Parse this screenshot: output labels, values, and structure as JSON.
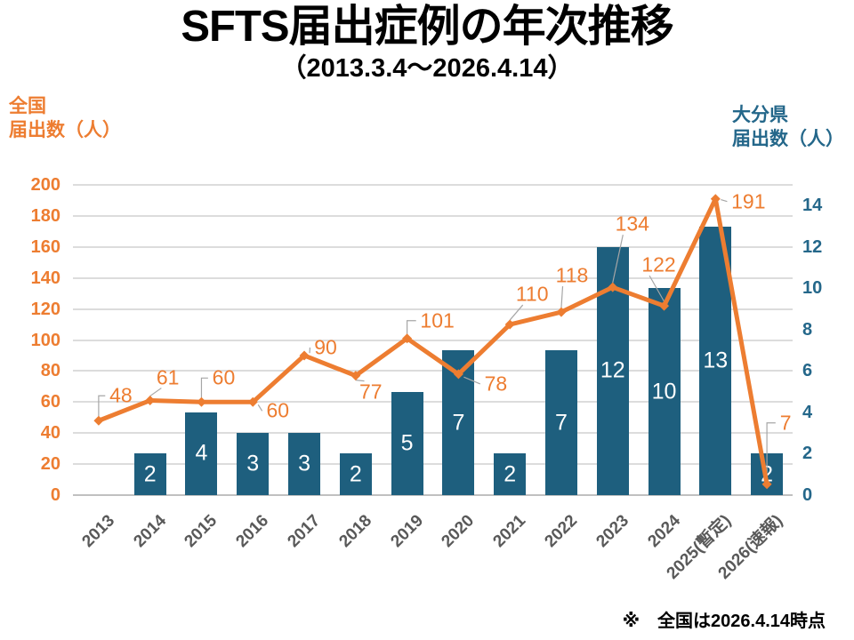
{
  "title": "SFTS届出症例の年次推移",
  "subtitle": "（2013.3.4～2026.4.14）",
  "footnote": "※　全国は2026.4.14時点",
  "left_axis": {
    "title": "全国\n届出数（人）",
    "color": "#ED7D31",
    "min": 0,
    "max": 200,
    "ticks": [
      0,
      20,
      40,
      60,
      80,
      100,
      120,
      140,
      160,
      180,
      200
    ]
  },
  "right_axis": {
    "title": "大分県\n届出数（人）",
    "color": "#24678A",
    "min": 0,
    "max": 15,
    "ticks": [
      0,
      2,
      4,
      6,
      8,
      10,
      12,
      14
    ]
  },
  "chart_data": {
    "type": "bar+line",
    "grid": true,
    "legend": false,
    "categories": [
      "2013",
      "2014",
      "2015",
      "2016",
      "2017",
      "2018",
      "2019",
      "2020",
      "2021",
      "2022",
      "2023",
      "2024",
      "2025(暫定)",
      "2026(速報)"
    ],
    "left_axis_range": [
      0,
      200
    ],
    "right_axis_range": [
      0,
      15
    ],
    "series": [
      {
        "name": "大分県届出数（人）",
        "type": "bar",
        "axis": "right",
        "color": "#1E5F7E",
        "label_color": "#FFFFFF",
        "values": [
          null,
          2,
          4,
          3,
          3,
          2,
          5,
          7,
          2,
          7,
          12,
          10,
          13,
          2
        ]
      },
      {
        "name": "全国届出数（人）",
        "type": "line",
        "axis": "left",
        "color": "#ED7D31",
        "leader_color": "#A6A6A6",
        "values": [
          48,
          61,
          60,
          60,
          90,
          77,
          101,
          78,
          110,
          118,
          134,
          122,
          191,
          7
        ],
        "label_offsets": [
          [
            25,
            -28
          ],
          [
            20,
            -26
          ],
          [
            25,
            -27
          ],
          [
            28,
            10
          ],
          [
            24,
            -9
          ],
          [
            17,
            18
          ],
          [
            34,
            -20
          ],
          [
            42,
            11
          ],
          [
            25,
            -34
          ],
          [
            12,
            -41
          ],
          [
            22,
            -71
          ],
          [
            -6,
            -46
          ],
          [
            37,
            3
          ],
          [
            21,
            -69
          ]
        ]
      }
    ]
  }
}
